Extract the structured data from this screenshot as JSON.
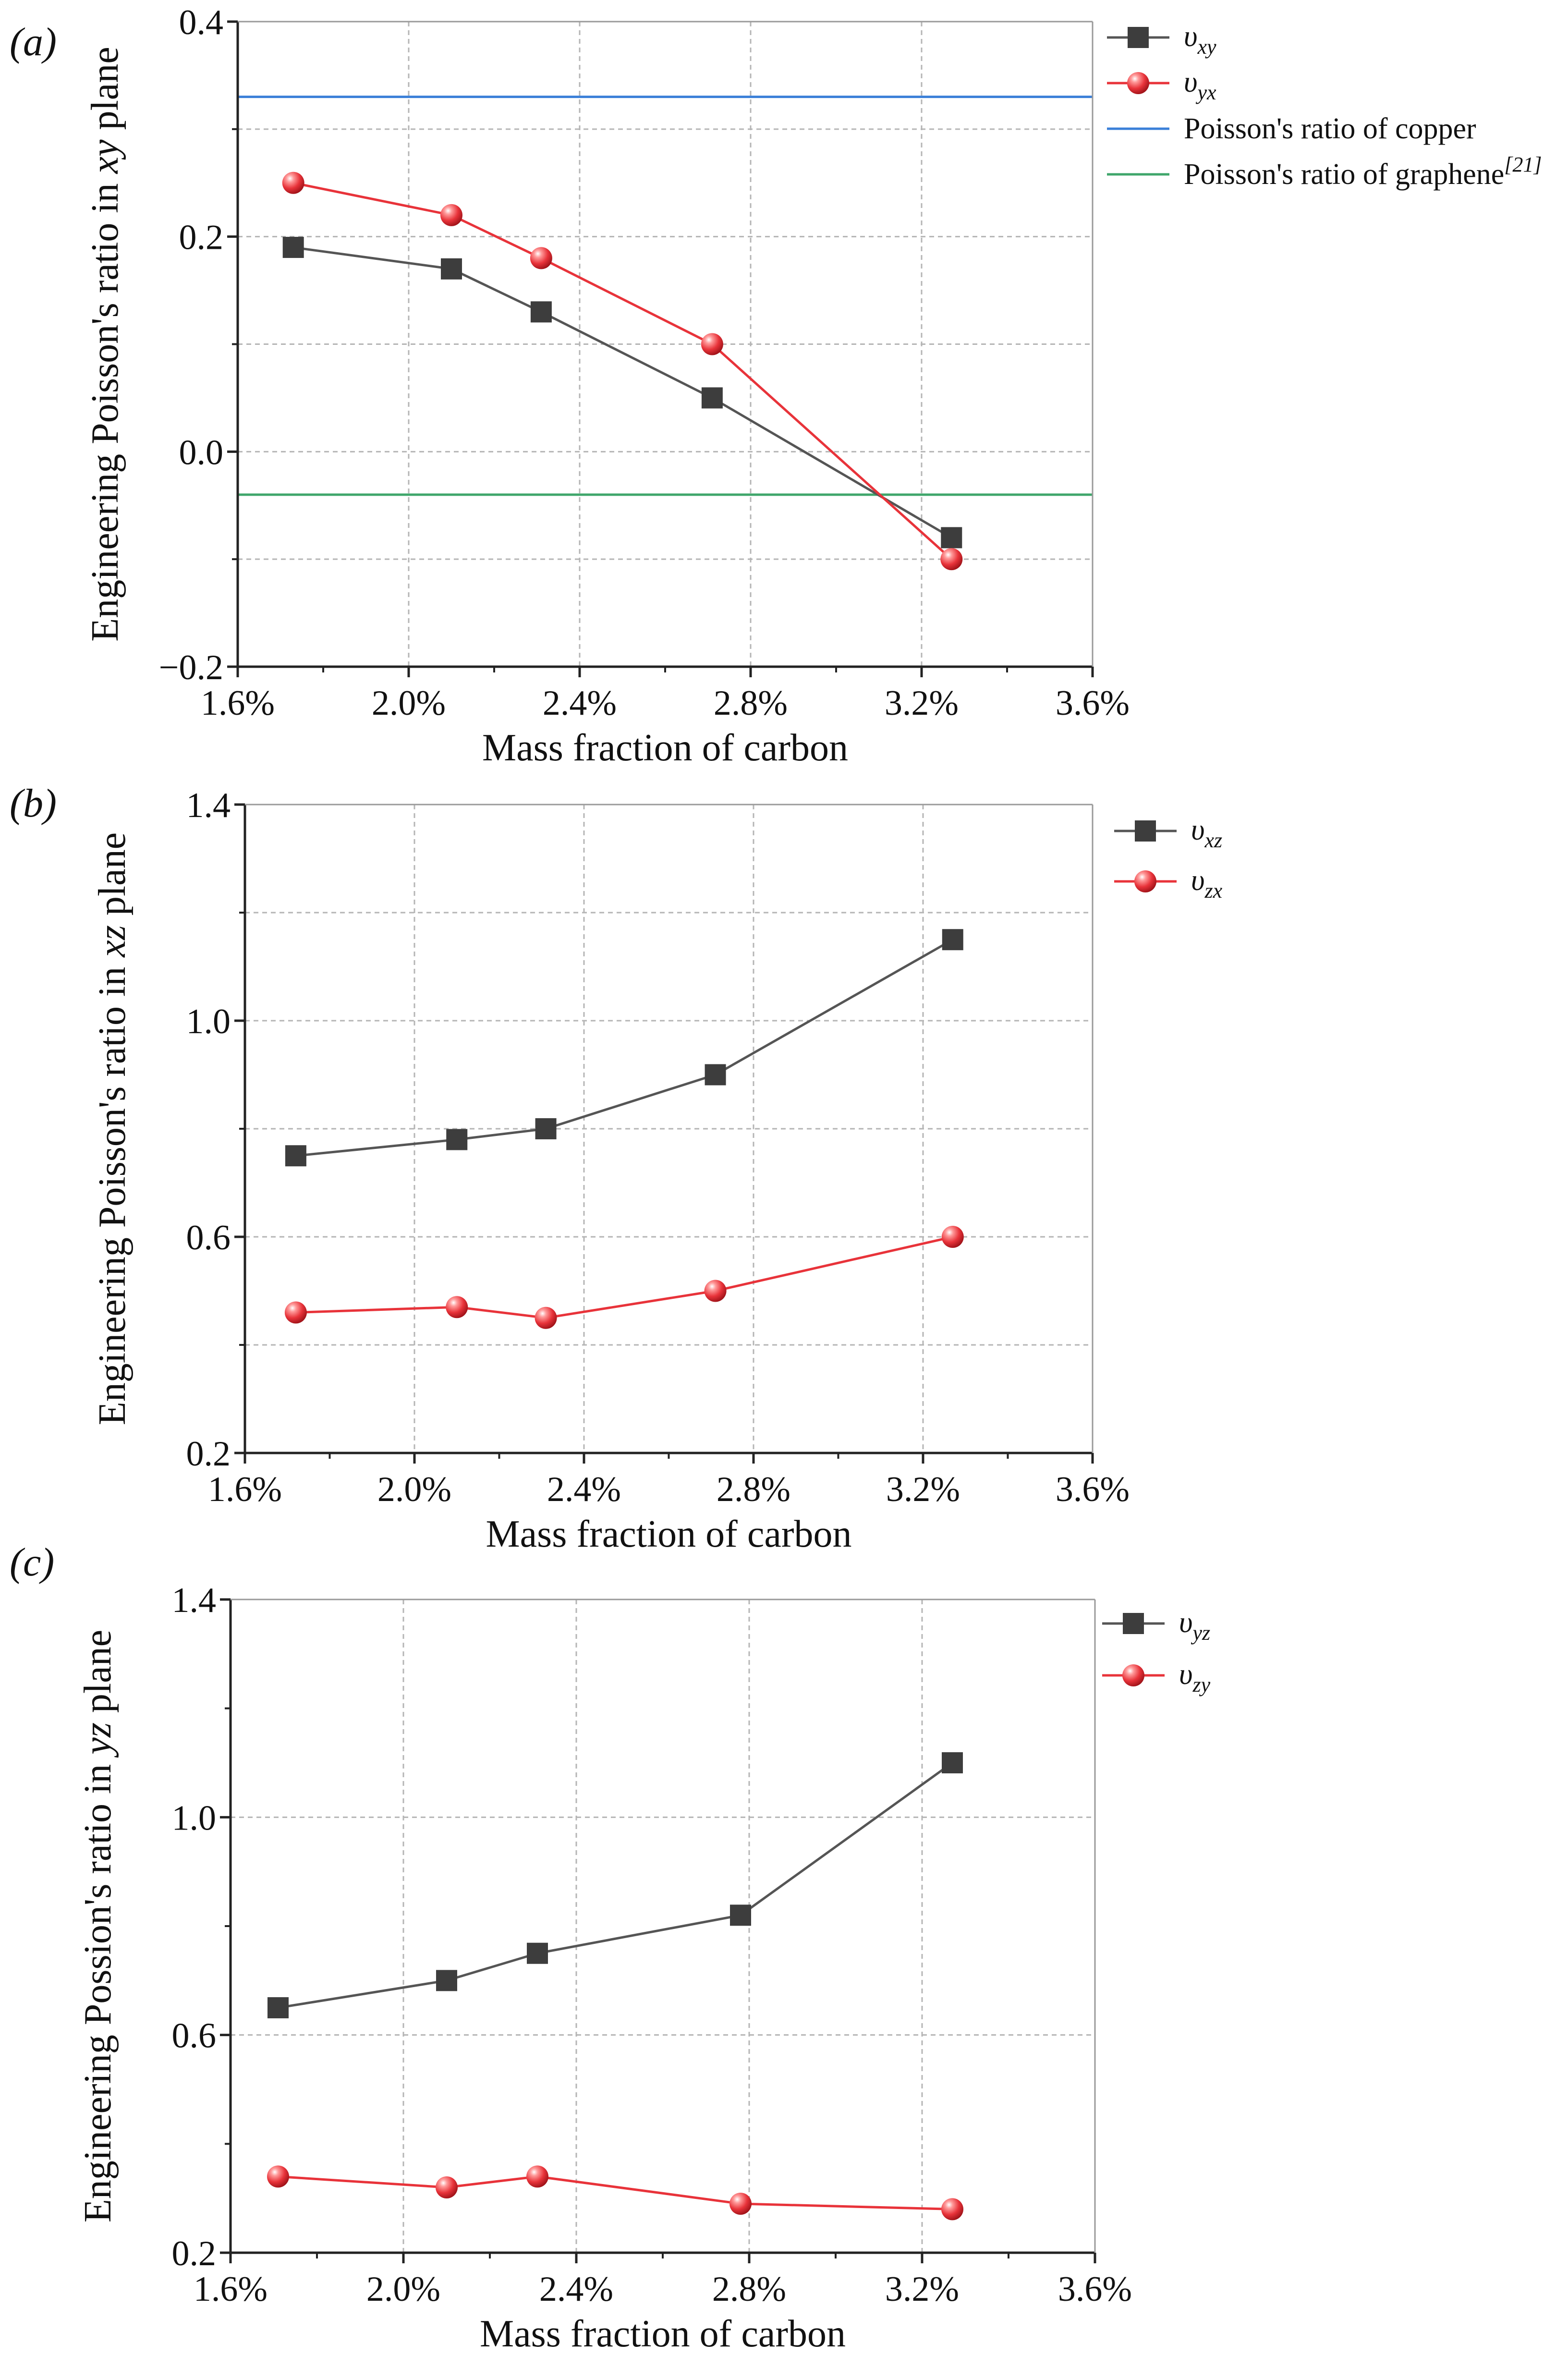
{
  "chart_data": [
    {
      "type": "line",
      "panel_label": "(a)",
      "xlabel": "Mass fraction of carbon",
      "ylabel_parts": [
        {
          "text": "Engineering Poisson's ratio in ",
          "italic": false
        },
        {
          "text": "xy",
          "italic": true
        },
        {
          "text": " plane",
          "italic": false
        }
      ],
      "xlim": [
        1.6,
        3.6
      ],
      "ylim": [
        -0.2,
        0.4
      ],
      "xticks": [
        1.6,
        2.0,
        2.4,
        2.8,
        3.2,
        3.6
      ],
      "xtick_labels": [
        "1.6%",
        "2.0%",
        "2.4%",
        "2.8%",
        "3.2%",
        "3.6%"
      ],
      "yticks": [
        -0.2,
        0.0,
        0.2,
        0.4
      ],
      "ytick_labels": [
        "−0.2",
        "0.0",
        "0.2",
        "0.4"
      ],
      "ygrid_values": [
        -0.2,
        -0.1,
        0.0,
        0.1,
        0.2,
        0.3,
        0.4
      ],
      "grid": true,
      "legend_position": "top-right outside",
      "series": [
        {
          "name": "υxy",
          "symbol": "υ",
          "subscript": "xy",
          "marker": "square",
          "color": "#3d3d3d",
          "line_color": "#555555",
          "x": [
            1.73,
            2.1,
            2.31,
            2.71,
            3.27
          ],
          "values": [
            0.19,
            0.17,
            0.13,
            0.05,
            -0.08
          ]
        },
        {
          "name": "υyx",
          "symbol": "υ",
          "subscript": "yx",
          "marker": "sphere",
          "color": "#e8333a",
          "line_color": "#e8333a",
          "x": [
            1.73,
            2.1,
            2.31,
            2.71,
            3.27
          ],
          "values": [
            0.25,
            0.22,
            0.18,
            0.1,
            -0.1
          ]
        }
      ],
      "reference_lines": [
        {
          "name": "Poisson's ratio of copper",
          "sup": "",
          "value": 0.33,
          "color": "#3a7fd8"
        },
        {
          "name": "Poisson's ratio of graphene",
          "sup": "[21]",
          "value": -0.04,
          "color": "#3fa66b"
        }
      ]
    },
    {
      "type": "line",
      "panel_label": "(b)",
      "xlabel": "Mass fraction of carbon",
      "ylabel_parts": [
        {
          "text": "Engineering Poisson's ratio in ",
          "italic": false
        },
        {
          "text": "xz",
          "italic": true
        },
        {
          "text": " plane",
          "italic": false
        }
      ],
      "xlim": [
        1.6,
        3.6
      ],
      "ylim": [
        0.2,
        1.4
      ],
      "xticks": [
        1.6,
        2.0,
        2.4,
        2.8,
        3.2,
        3.6
      ],
      "xtick_labels": [
        "1.6%",
        "2.0%",
        "2.4%",
        "2.8%",
        "3.2%",
        "3.6%"
      ],
      "yticks": [
        0.2,
        0.6,
        1.0,
        1.4
      ],
      "ytick_labels": [
        "0.2",
        "0.6",
        "1.0",
        "1.4"
      ],
      "ygrid_values": [
        0.2,
        0.4,
        0.6,
        0.8,
        1.0,
        1.2,
        1.4
      ],
      "grid": true,
      "legend_position": "top-right outside",
      "series": [
        {
          "name": "υxz",
          "symbol": "υ",
          "subscript": "xz",
          "marker": "square",
          "color": "#3d3d3d",
          "line_color": "#555555",
          "x": [
            1.72,
            2.1,
            2.31,
            2.71,
            3.27
          ],
          "values": [
            0.75,
            0.78,
            0.8,
            0.9,
            1.15
          ]
        },
        {
          "name": "υzx",
          "symbol": "υ",
          "subscript": "zx",
          "marker": "sphere",
          "color": "#e8333a",
          "line_color": "#e8333a",
          "x": [
            1.72,
            2.1,
            2.31,
            2.71,
            3.27
          ],
          "values": [
            0.46,
            0.47,
            0.45,
            0.5,
            0.6
          ]
        }
      ],
      "reference_lines": []
    },
    {
      "type": "line",
      "panel_label": "(c)",
      "xlabel": "Mass fraction of carbon",
      "ylabel_parts": [
        {
          "text": "Engineering Possion's ratio in ",
          "italic": false
        },
        {
          "text": "yz",
          "italic": true
        },
        {
          "text": " plane",
          "italic": false
        }
      ],
      "xlim": [
        1.6,
        3.6
      ],
      "ylim": [
        0.2,
        1.4
      ],
      "xticks": [
        1.6,
        2.0,
        2.4,
        2.8,
        3.2,
        3.6
      ],
      "xtick_labels": [
        "1.6%",
        "2.0%",
        "2.4%",
        "2.8%",
        "3.2%",
        "3.6%"
      ],
      "yticks": [
        0.2,
        0.6,
        1.0,
        1.4
      ],
      "ytick_labels": [
        "0.2",
        "0.6",
        "1.0",
        "1.4"
      ],
      "ygrid_values": [
        0.2,
        0.6,
        1.0,
        1.4
      ],
      "grid": true,
      "legend_position": "top-right outside",
      "series": [
        {
          "name": "υyz",
          "symbol": "υ",
          "subscript": "yz",
          "marker": "square",
          "color": "#3d3d3d",
          "line_color": "#555555",
          "x": [
            1.71,
            2.1,
            2.31,
            2.78,
            3.27
          ],
          "values": [
            0.65,
            0.7,
            0.75,
            0.82,
            1.1
          ]
        },
        {
          "name": "υzy",
          "symbol": "υ",
          "subscript": "zy",
          "marker": "sphere",
          "color": "#e8333a",
          "line_color": "#e8333a",
          "x": [
            1.71,
            2.1,
            2.31,
            2.78,
            3.27
          ],
          "values": [
            0.34,
            0.32,
            0.34,
            0.29,
            0.28
          ]
        }
      ],
      "reference_lines": []
    }
  ]
}
